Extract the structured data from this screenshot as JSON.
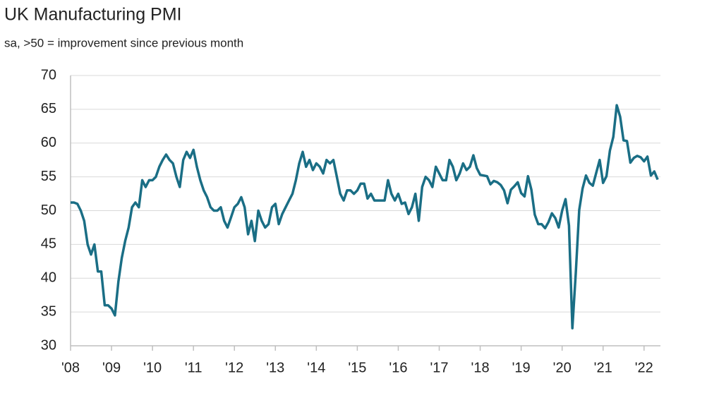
{
  "chart_data": {
    "type": "line",
    "title": "UK Manufacturing PMI",
    "subtitle": "sa, >50 = improvement since previous month",
    "x": [
      2008,
      2008.083,
      2008.167,
      2008.25,
      2008.333,
      2008.417,
      2008.5,
      2008.583,
      2008.667,
      2008.75,
      2008.833,
      2008.917,
      2009,
      2009.083,
      2009.167,
      2009.25,
      2009.333,
      2009.417,
      2009.5,
      2009.583,
      2009.667,
      2009.75,
      2009.833,
      2009.917,
      2010,
      2010.083,
      2010.167,
      2010.25,
      2010.333,
      2010.417,
      2010.5,
      2010.583,
      2010.667,
      2010.75,
      2010.833,
      2010.917,
      2011,
      2011.083,
      2011.167,
      2011.25,
      2011.333,
      2011.417,
      2011.5,
      2011.583,
      2011.667,
      2011.75,
      2011.833,
      2011.917,
      2012,
      2012.083,
      2012.167,
      2012.25,
      2012.333,
      2012.417,
      2012.5,
      2012.583,
      2012.667,
      2012.75,
      2012.833,
      2012.917,
      2013,
      2013.083,
      2013.167,
      2013.25,
      2013.333,
      2013.417,
      2013.5,
      2013.583,
      2013.667,
      2013.75,
      2013.833,
      2013.917,
      2014,
      2014.083,
      2014.167,
      2014.25,
      2014.333,
      2014.417,
      2014.5,
      2014.583,
      2014.667,
      2014.75,
      2014.833,
      2014.917,
      2015,
      2015.083,
      2015.167,
      2015.25,
      2015.333,
      2015.417,
      2015.5,
      2015.583,
      2015.667,
      2015.75,
      2015.833,
      2015.917,
      2016,
      2016.083,
      2016.167,
      2016.25,
      2016.333,
      2016.417,
      2016.5,
      2016.583,
      2016.667,
      2016.75,
      2016.833,
      2016.917,
      2017,
      2017.083,
      2017.167,
      2017.25,
      2017.333,
      2017.417,
      2017.5,
      2017.583,
      2017.667,
      2017.75,
      2017.833,
      2017.917,
      2018,
      2018.083,
      2018.167,
      2018.25,
      2018.333,
      2018.417,
      2018.5,
      2018.583,
      2018.667,
      2018.75,
      2018.833,
      2018.917,
      2019,
      2019.083,
      2019.167,
      2019.25,
      2019.333,
      2019.417,
      2019.5,
      2019.583,
      2019.667,
      2019.75,
      2019.833,
      2019.917,
      2020,
      2020.083,
      2020.167,
      2020.25,
      2020.333,
      2020.417,
      2020.5,
      2020.583,
      2020.667,
      2020.75,
      2020.833,
      2020.917,
      2021,
      2021.083,
      2021.167,
      2021.25,
      2021.333,
      2021.417,
      2021.5,
      2021.583,
      2021.667,
      2021.75,
      2021.833,
      2021.917,
      2022,
      2022.083,
      2022.167,
      2022.25,
      2022.333
    ],
    "series": [
      {
        "name": "UK Manufacturing PMI",
        "color": "#1a6e85",
        "values": [
          51.2,
          51.2,
          51,
          50,
          48.5,
          45,
          43.5,
          45,
          41,
          41,
          36,
          36,
          35.5,
          34.5,
          39.5,
          43,
          45.5,
          47.5,
          50.5,
          51.2,
          50.5,
          54.5,
          53.5,
          54.5,
          54.5,
          55,
          56.5,
          57.5,
          58.3,
          57.5,
          57,
          55,
          53.5,
          57.5,
          58.7,
          57.8,
          59,
          56.5,
          54.5,
          53,
          52,
          50.5,
          50,
          50,
          50.5,
          48.5,
          47.5,
          49,
          50.5,
          51,
          52,
          50.5,
          46.5,
          48.5,
          45.5,
          50,
          48.5,
          47.5,
          48,
          50.5,
          51,
          48,
          49.5,
          50.5,
          51.5,
          52.5,
          54.5,
          57,
          58.7,
          56.5,
          57.5,
          56,
          57,
          56.5,
          55.5,
          57.5,
          57,
          57.5,
          55,
          52.5,
          51.5,
          53,
          53,
          52.5,
          53,
          54,
          54,
          51.8,
          52.5,
          51.5,
          51.5,
          51.5,
          51.5,
          54.5,
          52.5,
          51.5,
          52.5,
          51,
          51.2,
          49.5,
          50.5,
          52.5,
          48.5,
          53.5,
          55,
          54.5,
          53.5,
          56.5,
          55.5,
          54.5,
          54.5,
          57.5,
          56.5,
          54.5,
          55.5,
          57,
          56,
          56.5,
          58.2,
          56.3,
          55.3,
          55.2,
          55.1,
          53.9,
          54.4,
          54.2,
          53.8,
          53,
          51.1,
          53.1,
          53.6,
          54.2,
          52.6,
          52.1,
          55.1,
          53.1,
          49.4,
          48,
          48,
          47.4,
          48.3,
          49.6,
          48.9,
          47.5,
          50,
          51.7,
          47.8,
          32.6,
          40.7,
          50.1,
          53.3,
          55.2,
          54.1,
          53.7,
          55.6,
          57.5,
          54.1,
          55.1,
          58.9,
          60.9,
          65.6,
          63.9,
          60.4,
          60.3,
          57.1,
          57.8,
          58.1,
          57.9,
          57.3,
          58,
          55.2,
          55.8,
          54.6
        ]
      }
    ],
    "xlim": [
      2008,
      2022.4
    ],
    "xticks": [
      {
        "value": 2008,
        "label": "'08"
      },
      {
        "value": 2009,
        "label": "'09"
      },
      {
        "value": 2010,
        "label": "'10"
      },
      {
        "value": 2011,
        "label": "'11"
      },
      {
        "value": 2012,
        "label": "'12"
      },
      {
        "value": 2013,
        "label": "'13"
      },
      {
        "value": 2014,
        "label": "'14"
      },
      {
        "value": 2015,
        "label": "'15"
      },
      {
        "value": 2016,
        "label": "'16"
      },
      {
        "value": 2017,
        "label": "'17"
      },
      {
        "value": 2018,
        "label": "'18"
      },
      {
        "value": 2019,
        "label": "'19"
      },
      {
        "value": 2020,
        "label": "'20"
      },
      {
        "value": 2021,
        "label": "'21"
      },
      {
        "value": 2022,
        "label": "'22"
      }
    ],
    "ylim": [
      30,
      70
    ],
    "yticks": [
      30,
      35,
      40,
      45,
      50,
      55,
      60,
      65,
      70
    ],
    "grid": true
  }
}
